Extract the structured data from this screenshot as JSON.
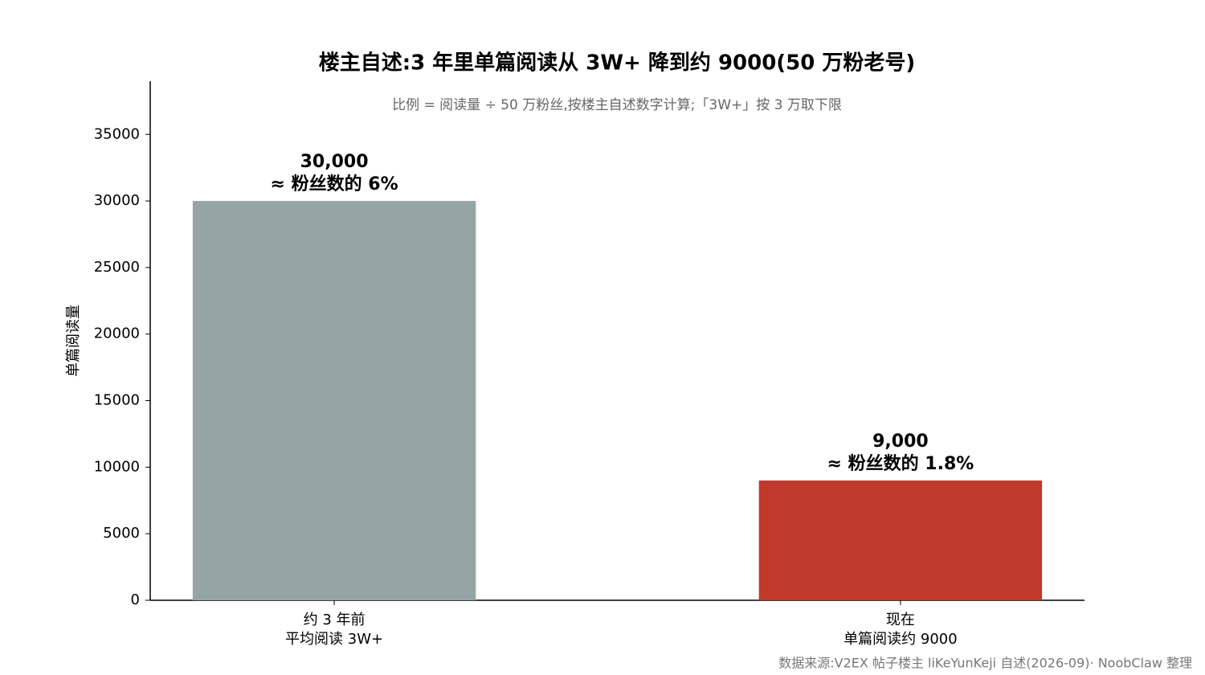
{
  "chart_data": {
    "type": "bar",
    "title": "楼主自述:3 年里单篇阅读从 3W+ 降到约 9000(50 万粉老号)",
    "subtitle": "比例 = 阅读量 ÷ 50 万粉丝,按楼主自述数字计算;「3W+」按 3 万取下限",
    "y_label": "单篇阅读量",
    "source": "数据来源:V2EX 帖子楼主 liKeYunKeji 自述(2026-09)· NoobClaw 整理",
    "categories": [
      "约 3 年前\n平均阅读 3W+",
      "现在\n单篇阅读约 9000"
    ],
    "values": [
      30000,
      9000
    ],
    "value_labels": [
      "30,000",
      "9,000"
    ],
    "annotations": [
      "≈ 粉丝数的 6%",
      "≈ 粉丝数的 1.8%"
    ],
    "colors": [
      "#95a5a6",
      "#c0392b"
    ],
    "ylim": [
      0,
      39000
    ],
    "yticks": [
      0,
      5000,
      10000,
      15000,
      20000,
      25000,
      30000,
      35000
    ],
    "grid": false
  }
}
